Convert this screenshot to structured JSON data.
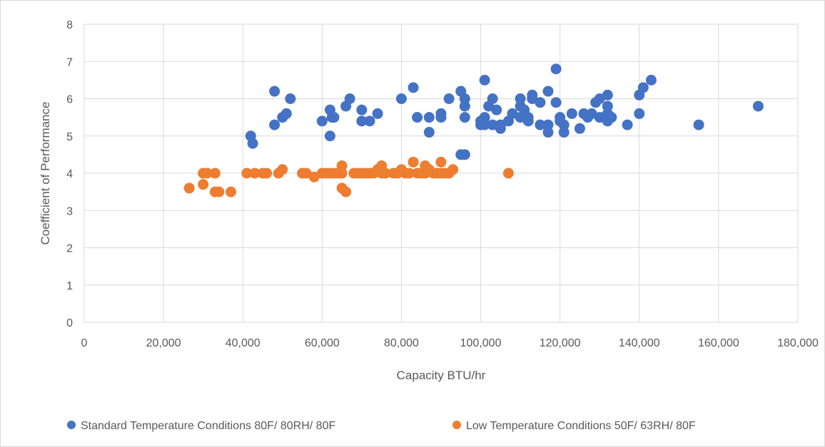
{
  "chart_data": {
    "type": "scatter",
    "title": "",
    "xlabel": "Capacity BTU/hr",
    "ylabel": "Coefficient of Performance",
    "xlim": [
      0,
      180000
    ],
    "ylim": [
      0,
      8
    ],
    "x_ticks": [
      0,
      20000,
      40000,
      60000,
      80000,
      100000,
      120000,
      140000,
      160000,
      180000
    ],
    "x_tick_labels": [
      "0",
      "20,000",
      "40,000",
      "60,000",
      "80,000",
      "100,000",
      "120,000",
      "140,000",
      "160,000",
      "180,000"
    ],
    "y_ticks": [
      0,
      1,
      2,
      3,
      4,
      5,
      6,
      7,
      8
    ],
    "y_tick_labels": [
      "0",
      "1",
      "2",
      "3",
      "4",
      "5",
      "6",
      "7",
      "8"
    ],
    "grid": "major gridlines on",
    "legend_position": "bottom",
    "series": [
      {
        "name": "Standard Temperature Conditions 80F/ 80RH/ 80F",
        "color": "#4472c4",
        "points": [
          [
            42000,
            5.0
          ],
          [
            42500,
            4.8
          ],
          [
            48000,
            6.2
          ],
          [
            48000,
            5.3
          ],
          [
            50000,
            5.5
          ],
          [
            51000,
            5.6
          ],
          [
            52000,
            6.0
          ],
          [
            60000,
            5.4
          ],
          [
            62000,
            5.0
          ],
          [
            62000,
            5.7
          ],
          [
            62500,
            5.5
          ],
          [
            63000,
            5.5
          ],
          [
            66000,
            5.8
          ],
          [
            67000,
            6.0
          ],
          [
            70000,
            5.7
          ],
          [
            70000,
            5.4
          ],
          [
            72000,
            5.4
          ],
          [
            74000,
            5.6
          ],
          [
            80000,
            6.0
          ],
          [
            83000,
            6.3
          ],
          [
            84000,
            5.5
          ],
          [
            87000,
            5.1
          ],
          [
            87000,
            5.5
          ],
          [
            90000,
            5.5
          ],
          [
            90000,
            5.6
          ],
          [
            92000,
            6.0
          ],
          [
            95000,
            6.2
          ],
          [
            95000,
            4.5
          ],
          [
            96000,
            4.5
          ],
          [
            96000,
            6.0
          ],
          [
            96000,
            5.8
          ],
          [
            96000,
            5.5
          ],
          [
            100000,
            5.3
          ],
          [
            100000,
            5.4
          ],
          [
            101000,
            6.5
          ],
          [
            101000,
            5.5
          ],
          [
            101000,
            5.3
          ],
          [
            102000,
            5.8
          ],
          [
            103000,
            5.3
          ],
          [
            103000,
            6.0
          ],
          [
            104000,
            5.7
          ],
          [
            105000,
            5.2
          ],
          [
            105000,
            5.3
          ],
          [
            107000,
            5.4
          ],
          [
            108000,
            5.6
          ],
          [
            110000,
            6.0
          ],
          [
            110000,
            5.8
          ],
          [
            110000,
            5.5
          ],
          [
            111000,
            5.7
          ],
          [
            112000,
            5.5
          ],
          [
            112000,
            5.4
          ],
          [
            113000,
            6.1
          ],
          [
            113000,
            6.0
          ],
          [
            115000,
            5.9
          ],
          [
            115000,
            5.3
          ],
          [
            117000,
            6.2
          ],
          [
            117000,
            5.3
          ],
          [
            117000,
            5.1
          ],
          [
            119000,
            6.8
          ],
          [
            119000,
            5.9
          ],
          [
            120000,
            5.5
          ],
          [
            120000,
            5.4
          ],
          [
            121000,
            5.3
          ],
          [
            121000,
            5.1
          ],
          [
            123000,
            5.6
          ],
          [
            125000,
            5.2
          ],
          [
            126000,
            5.6
          ],
          [
            127000,
            5.5
          ],
          [
            128000,
            5.6
          ],
          [
            129000,
            5.9
          ],
          [
            130000,
            6.0
          ],
          [
            130000,
            5.5
          ],
          [
            131000,
            5.5
          ],
          [
            132000,
            6.1
          ],
          [
            132000,
            5.8
          ],
          [
            132000,
            5.6
          ],
          [
            132000,
            5.4
          ],
          [
            133000,
            5.5
          ],
          [
            137000,
            5.3
          ],
          [
            140000,
            6.1
          ],
          [
            140000,
            5.6
          ],
          [
            141000,
            6.3
          ],
          [
            143000,
            6.5
          ],
          [
            155000,
            5.3
          ],
          [
            170000,
            5.8
          ]
        ]
      },
      {
        "name": "Low Temperature Conditions 50F/ 63RH/ 80F",
        "color": "#ed7d31",
        "points": [
          [
            26500,
            3.6
          ],
          [
            30000,
            4.0
          ],
          [
            30000,
            3.7
          ],
          [
            31000,
            4.0
          ],
          [
            33000,
            4.0
          ],
          [
            33000,
            3.5
          ],
          [
            34000,
            3.5
          ],
          [
            37000,
            3.5
          ],
          [
            41000,
            4.0
          ],
          [
            43000,
            4.0
          ],
          [
            45000,
            4.0
          ],
          [
            46000,
            4.0
          ],
          [
            49000,
            4.0
          ],
          [
            50000,
            4.1
          ],
          [
            55000,
            4.0
          ],
          [
            56000,
            4.0
          ],
          [
            58000,
            3.9
          ],
          [
            60000,
            4.0
          ],
          [
            61000,
            4.0
          ],
          [
            62000,
            4.0
          ],
          [
            63000,
            4.0
          ],
          [
            64000,
            4.0
          ],
          [
            65000,
            4.2
          ],
          [
            65000,
            4.0
          ],
          [
            65000,
            3.6
          ],
          [
            66000,
            3.5
          ],
          [
            68000,
            4.0
          ],
          [
            69000,
            4.0
          ],
          [
            70000,
            4.0
          ],
          [
            71000,
            4.0
          ],
          [
            72000,
            4.0
          ],
          [
            73000,
            4.0
          ],
          [
            74000,
            4.1
          ],
          [
            75000,
            4.2
          ],
          [
            75000,
            4.0
          ],
          [
            76000,
            4.0
          ],
          [
            78000,
            4.0
          ],
          [
            79000,
            4.0
          ],
          [
            80000,
            4.1
          ],
          [
            81000,
            4.0
          ],
          [
            82000,
            4.0
          ],
          [
            83000,
            4.3
          ],
          [
            84000,
            4.0
          ],
          [
            85000,
            4.0
          ],
          [
            86000,
            4.2
          ],
          [
            86000,
            4.0
          ],
          [
            87000,
            4.1
          ],
          [
            88000,
            4.0
          ],
          [
            89000,
            4.0
          ],
          [
            90000,
            4.3
          ],
          [
            90000,
            4.0
          ],
          [
            91000,
            4.0
          ],
          [
            92000,
            4.0
          ],
          [
            93000,
            4.1
          ],
          [
            107000,
            4.0
          ]
        ]
      }
    ]
  }
}
